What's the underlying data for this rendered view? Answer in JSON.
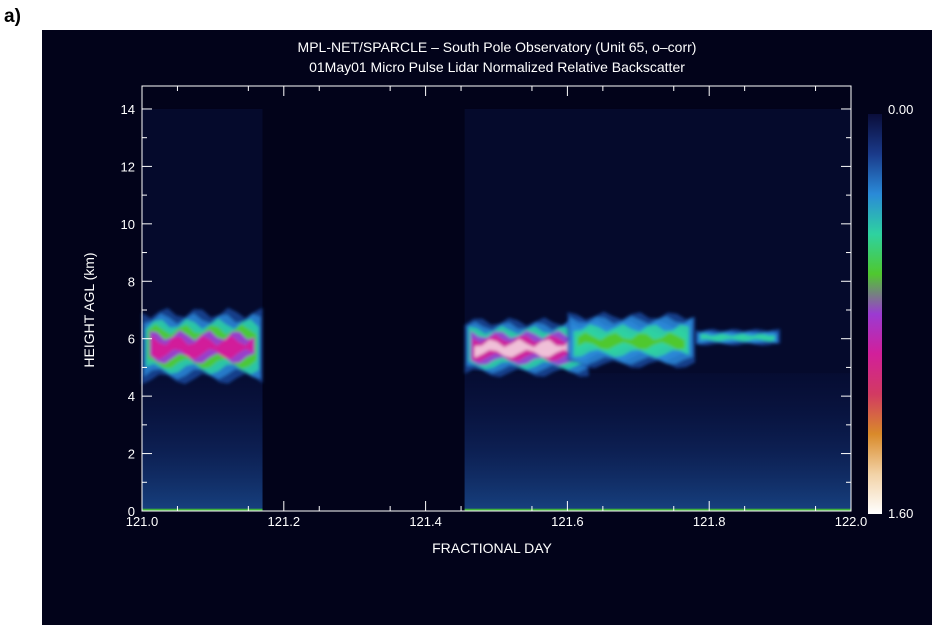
{
  "panel_label": "a)",
  "chart_data": {
    "type": "heatmap",
    "title": "MPL-NET/SPARCLE – South Pole Observatory  (Unit 65, o–corr)",
    "subtitle": "01May01 Micro Pulse Lidar Normalized Relative Backscatter",
    "xlabel": "FRACTIONAL DAY",
    "ylabel": "HEIGHT AGL (km)",
    "xlim": [
      121.0,
      122.0
    ],
    "ylim": [
      0,
      14.8
    ],
    "xticks": [
      {
        "value": 121.0,
        "label": "121.0"
      },
      {
        "value": 121.2,
        "label": "121.2"
      },
      {
        "value": 121.4,
        "label": "121.4"
      },
      {
        "value": 121.6,
        "label": "121.6"
      },
      {
        "value": 121.8,
        "label": "121.8"
      },
      {
        "value": 122.0,
        "label": "122.0"
      }
    ],
    "yticks": [
      {
        "value": 0,
        "label": "0"
      },
      {
        "value": 2,
        "label": "2"
      },
      {
        "value": 4,
        "label": "4"
      },
      {
        "value": 6,
        "label": "6"
      },
      {
        "value": 8,
        "label": "8"
      },
      {
        "value": 10,
        "label": "10"
      },
      {
        "value": 12,
        "label": "12"
      },
      {
        "value": 14,
        "label": "14"
      }
    ],
    "colorbar": {
      "min": 0.0,
      "max": 1.6,
      "min_label": "0.00",
      "max_label": "1.60"
    },
    "data_segments": [
      {
        "x_start": 121.0,
        "x_end": 121.17,
        "top_km": 14.0
      },
      {
        "x_start": 121.455,
        "x_end": 122.0,
        "top_km": 14.0
      }
    ],
    "cloud_layers": [
      {
        "x_start": 121.0,
        "x_end": 121.17,
        "bottom_km": 4.6,
        "top_km": 6.9,
        "peak": 1.3
      },
      {
        "x_start": 121.455,
        "x_end": 121.63,
        "bottom_km": 4.8,
        "top_km": 6.6,
        "peak": 1.6
      },
      {
        "x_start": 121.6,
        "x_end": 121.78,
        "bottom_km": 5.1,
        "top_km": 6.8,
        "peak": 0.7
      },
      {
        "x_start": 121.78,
        "x_end": 121.9,
        "bottom_km": 5.8,
        "top_km": 6.3,
        "peak": 0.5
      }
    ],
    "colors": {
      "background": "#02031a",
      "axis": "#ffffff",
      "colormap": [
        "#ffffff",
        "#f2d2a6",
        "#d98a2a",
        "#d23a62",
        "#d21f9a",
        "#9b3ad2",
        "#4fc82e",
        "#2ed2a0",
        "#2a8ad8",
        "#1a3a8a",
        "#0a0d3a"
      ]
    }
  }
}
